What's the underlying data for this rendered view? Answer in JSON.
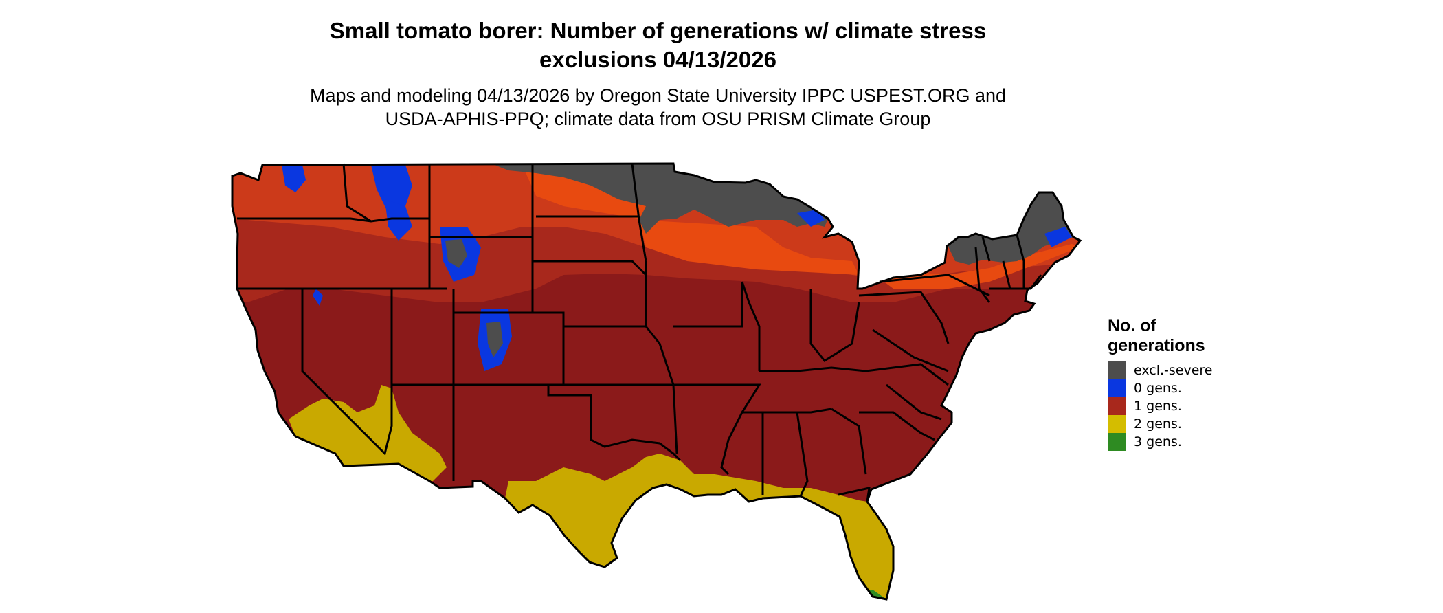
{
  "title": {
    "line1": "Small tomato borer: Number of generations w/ climate stress",
    "line2": "exclusions 04/13/2026"
  },
  "subtitle": {
    "line1": "Maps and modeling 04/13/2026 by Oregon State University IPPC USPEST.ORG and",
    "line2": "USDA-APHIS-PPQ; climate data from OSU PRISM Climate Group"
  },
  "legend": {
    "title_line1": "No. of",
    "title_line2": "generations",
    "items": [
      {
        "label": "excl.-severe",
        "color": "#4d4d4d"
      },
      {
        "label": "0 gens.",
        "color": "#0a37e0"
      },
      {
        "label": "1 gens.",
        "color": "#a8281c"
      },
      {
        "label": "2 gens.",
        "color": "#d4bd00"
      },
      {
        "label": "3 gens.",
        "color": "#2e8b22"
      }
    ]
  },
  "map": {
    "colors": {
      "excluded": "#4d4d4d",
      "zero": "#0a37e0",
      "one_dark": "#8b1a1a",
      "one_mid": "#a8281c",
      "one_light": "#cc3a1a",
      "one_bright": "#e84a10",
      "two": "#c9a900",
      "three": "#2e8b22",
      "border": "#000000"
    }
  }
}
